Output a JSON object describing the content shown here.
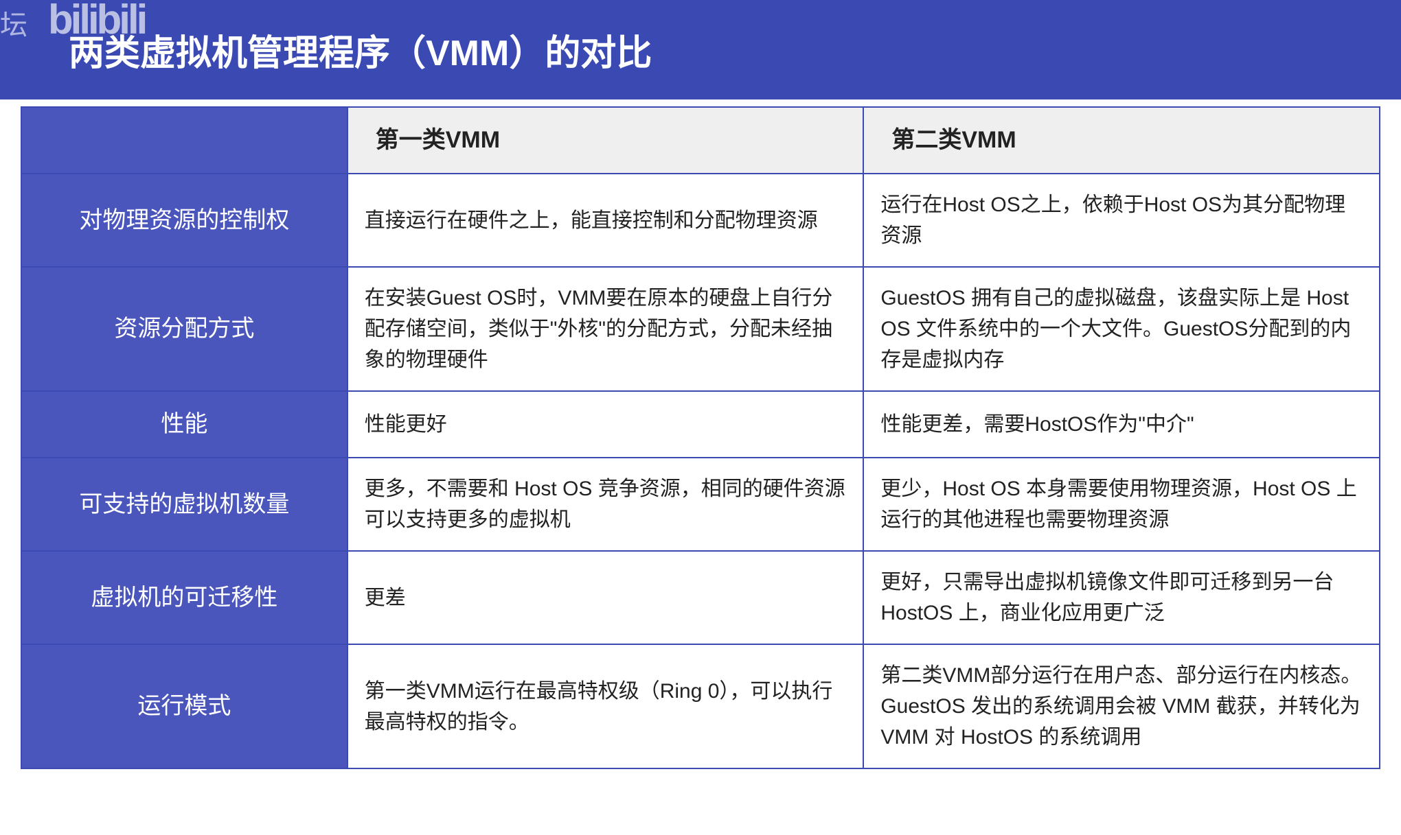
{
  "watermark": {
    "left_char": "坛",
    "logo": "bilibili"
  },
  "title": "两类虚拟机管理程序（VMM）的对比",
  "table": {
    "type": "table",
    "columns": [
      "",
      "第一类VMM",
      "第二类VMM"
    ],
    "col_widths_pct": [
      24,
      38,
      38
    ],
    "header_bg": "#efefef",
    "label_col_bg": "#4a56bb",
    "label_col_text_color": "#ffffff",
    "cell_bg": "#ffffff",
    "cell_text_color": "#222222",
    "border_color": "#3b4ab3",
    "title_bg": "#3b4ab3",
    "title_text_color": "#ffffff",
    "title_fontsize_pt": 39,
    "header_fontsize_pt": 25,
    "cell_fontsize_pt": 22,
    "rows": [
      {
        "label": "对物理资源的控制权",
        "a": "直接运行在硬件之上，能直接控制和分配物理资源",
        "b": "运行在Host OS之上，依赖于Host OS为其分配物理资源"
      },
      {
        "label": "资源分配方式",
        "a": "在安装Guest OS时，VMM要在原本的硬盘上自行分配存储空间，类似于\"外核\"的分配方式，分配未经抽象的物理硬件",
        "b": "GuestOS 拥有自己的虚拟磁盘，该盘实际上是 Host OS 文件系统中的一个大文件。GuestOS分配到的内存是虚拟内存"
      },
      {
        "label": "性能",
        "a": "性能更好",
        "b": "性能更差，需要HostOS作为\"中介\""
      },
      {
        "label": "可支持的虚拟机数量",
        "a": "更多，不需要和 Host OS 竞争资源，相同的硬件资源可以支持更多的虚拟机",
        "b": "更少，Host OS 本身需要使用物理资源，Host OS 上运行的其他进程也需要物理资源"
      },
      {
        "label": "虚拟机的可迁移性",
        "a": "更差",
        "b": "更好，只需导出虚拟机镜像文件即可迁移到另一台 HostOS 上，商业化应用更广泛"
      },
      {
        "label": "运行模式",
        "a": "第一类VMM运行在最高特权级（Ring 0），可以执行最高特权的指令。",
        "b": "第二类VMM部分运行在用户态、部分运行在内核态。GuestOS 发出的系统调用会被 VMM 截获，并转化为 VMM 对 HostOS 的系统调用"
      }
    ]
  }
}
